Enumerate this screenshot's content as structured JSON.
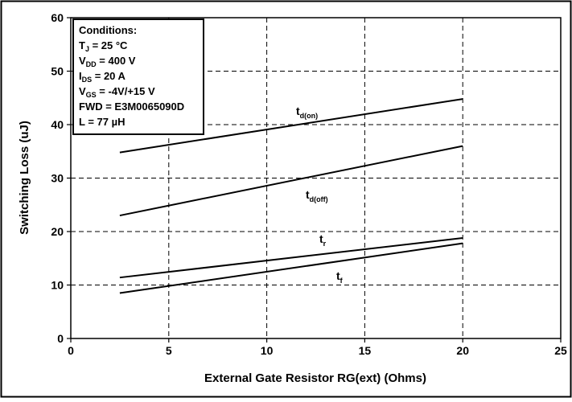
{
  "chart_data": {
    "type": "line",
    "title": "",
    "xlabel": "External Gate Resistor RG(ext) (Ohms)",
    "ylabel": "Switching Loss (uJ)",
    "xlim": [
      0,
      25
    ],
    "ylim": [
      0,
      60
    ],
    "xticks": [
      0,
      5,
      10,
      15,
      20,
      25
    ],
    "yticks": [
      0,
      10,
      20,
      30,
      40,
      50,
      60
    ],
    "grid": true,
    "series": [
      {
        "name": "t_d(on)",
        "label_main": "t",
        "label_sub": "d(on)",
        "x": [
          2.5,
          20
        ],
        "y": [
          34.8,
          44.8
        ]
      },
      {
        "name": "t_d(off)",
        "label_main": "t",
        "label_sub": "d(off)",
        "x": [
          2.5,
          20
        ],
        "y": [
          23.0,
          36.0
        ]
      },
      {
        "name": "t_r",
        "label_main": "t",
        "label_sub": "r",
        "x": [
          2.5,
          20
        ],
        "y": [
          11.4,
          18.8
        ]
      },
      {
        "name": "t_f",
        "label_main": "t",
        "label_sub": "f",
        "x": [
          2.5,
          20
        ],
        "y": [
          8.5,
          17.8
        ]
      }
    ],
    "conditions": {
      "heading": "Conditions:",
      "lines": [
        {
          "main": "T",
          "sub": "J",
          "rest": " = 25 °C"
        },
        {
          "main": "V",
          "sub": "DD",
          "rest": " = 400 V"
        },
        {
          "main": "I",
          "sub": "DS",
          "rest": " = 20 A"
        },
        {
          "main": "V",
          "sub": "GS",
          "rest": " = -4V/+15 V"
        },
        {
          "main": "FWD = E3M0065090D",
          "sub": "",
          "rest": ""
        },
        {
          "main": "L = 77 µH",
          "sub": "",
          "rest": ""
        }
      ]
    }
  }
}
